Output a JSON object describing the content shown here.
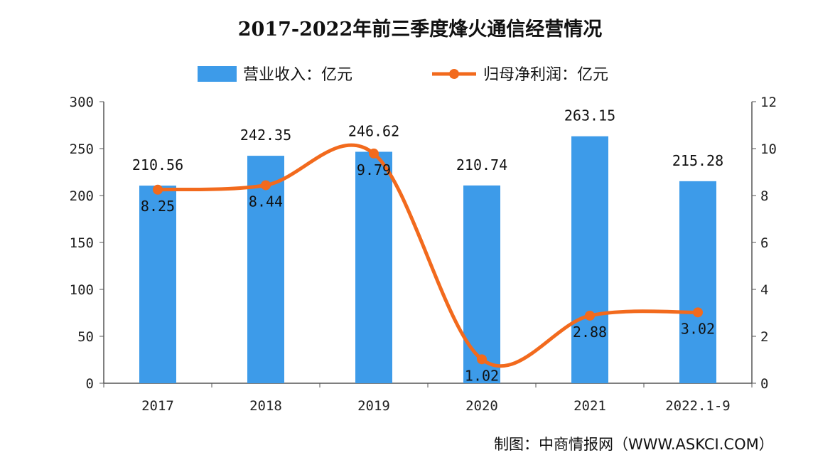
{
  "chart_data": {
    "type": "bar+line",
    "title": "2017-2022年前三季度烽火通信经营情况",
    "categories": [
      "2017",
      "2018",
      "2019",
      "2020",
      "2021",
      "2022.1-9"
    ],
    "series": [
      {
        "name": "营业收入：亿元",
        "type": "bar",
        "axis": "left",
        "color": "#3d9be9",
        "values": [
          210.56,
          242.35,
          246.62,
          210.74,
          263.15,
          215.28
        ]
      },
      {
        "name": "归母净利润：亿元",
        "type": "line",
        "axis": "right",
        "color": "#f26a1d",
        "values": [
          8.25,
          8.44,
          9.79,
          1.02,
          2.88,
          3.02
        ]
      }
    ],
    "y_left": {
      "range": [
        0,
        300
      ],
      "ticks": [
        "0",
        "50",
        "100",
        "150",
        "200",
        "250",
        "300"
      ]
    },
    "y_right": {
      "range": [
        0,
        12
      ],
      "ticks": [
        "0",
        "2",
        "4",
        "6",
        "8",
        "10",
        "12"
      ]
    },
    "grid": false,
    "legend": "top"
  },
  "source": "制图：中商情报网（WWW.ASKCI.COM）"
}
